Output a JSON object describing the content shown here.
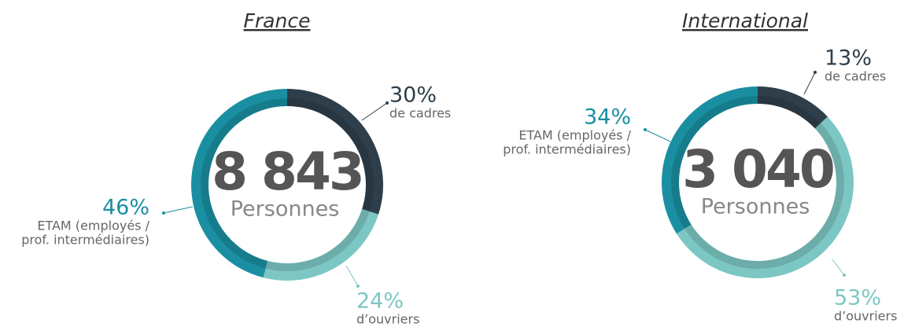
{
  "chart_data": [
    {
      "type": "donut",
      "title": "France",
      "center_value": "8 843",
      "center_label": "Personnes",
      "categories": [
        [
          "de cadres"
        ],
        [
          "d’ouvriers"
        ],
        [
          "ETAM (employés /",
          "prof. intermédiaires)"
        ]
      ],
      "values": [
        30,
        24,
        46
      ],
      "value_labels": [
        "30%",
        "24%",
        "46%"
      ],
      "colors": [
        "#2e3f4b",
        "#7cc7c4",
        "#1a8fa1"
      ]
    },
    {
      "type": "donut",
      "title": "International",
      "center_value": "3 040",
      "center_label": "Personnes",
      "categories": [
        [
          "de cadres"
        ],
        [
          "d’ouvriers"
        ],
        [
          "ETAM (employés /",
          "prof. intermédiaires)"
        ]
      ],
      "values": [
        13,
        53,
        34
      ],
      "value_labels": [
        "13%",
        "53%",
        "34%"
      ],
      "colors": [
        "#2e3f4b",
        "#7cc7c4",
        "#1a8fa1"
      ]
    }
  ]
}
